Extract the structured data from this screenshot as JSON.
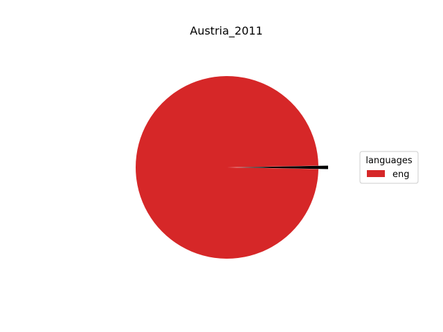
{
  "chart_data": {
    "type": "pie",
    "title": "Austria_2011",
    "slices": [
      {
        "label": "eng",
        "value": 99.4,
        "color": "#d62728",
        "in_legend": true
      },
      {
        "label": "",
        "value": 0.6,
        "color": "#000000",
        "in_legend": false
      }
    ],
    "legend": {
      "title": "languages",
      "placement": "right",
      "entries": [
        {
          "label": "eng",
          "color": "#d62728"
        }
      ]
    }
  }
}
